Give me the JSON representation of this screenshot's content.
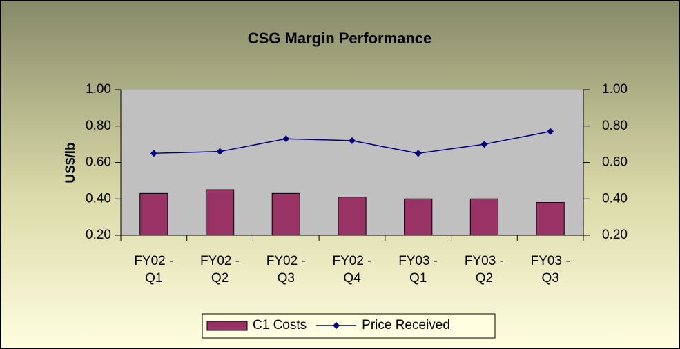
{
  "chart_data": {
    "type": "bar+line",
    "title": "CSG Margin Performance",
    "y_label": "US$/lb",
    "categories": [
      "FY02 - Q1",
      "FY02 - Q2",
      "FY02 - Q3",
      "FY02 - Q4",
      "FY03 - Q1",
      "FY03 - Q2",
      "FY03 - Q3"
    ],
    "series": [
      {
        "name": "C1 Costs",
        "type": "bar",
        "color": "#993366",
        "values": [
          0.43,
          0.45,
          0.43,
          0.41,
          0.4,
          0.4,
          0.38
        ]
      },
      {
        "name": "Price Received",
        "type": "line",
        "color": "#000080",
        "axis": "y2",
        "values": [
          0.65,
          0.66,
          0.73,
          0.72,
          0.65,
          0.7,
          0.77
        ]
      }
    ],
    "ylim": [
      0.2,
      1.0
    ],
    "yticks": [
      {
        "value": 0.2,
        "label": "0.20"
      },
      {
        "value": 0.4,
        "label": "0.40"
      },
      {
        "value": 0.6,
        "label": "0.60"
      },
      {
        "value": 0.8,
        "label": "0.80"
      },
      {
        "value": 1.0,
        "label": "1.00"
      }
    ],
    "y2lim": [
      0.2,
      1.0
    ],
    "y2ticks": [
      {
        "value": 0.2,
        "label": "0.20"
      },
      {
        "value": 0.4,
        "label": "0.40"
      },
      {
        "value": 0.6,
        "label": "0.60"
      },
      {
        "value": 0.8,
        "label": "0.80"
      },
      {
        "value": 1.0,
        "label": "1.00"
      }
    ],
    "legend": "bottom"
  }
}
